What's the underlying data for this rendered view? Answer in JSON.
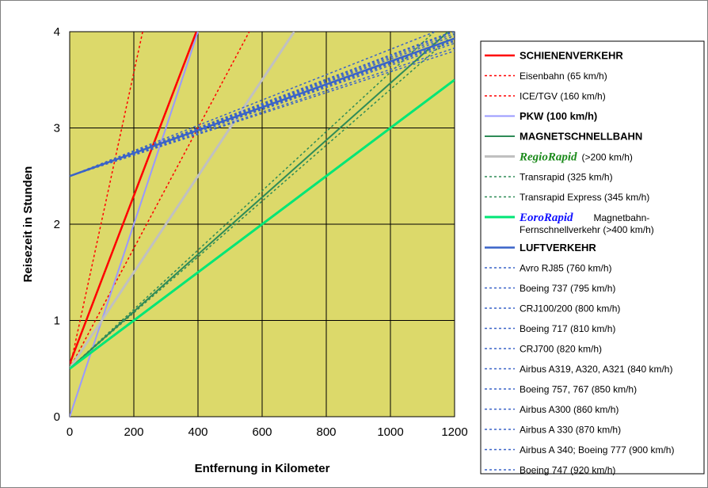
{
  "chart_data": {
    "type": "line",
    "xlabel": "Entfernung in Kilometer",
    "ylabel": "Reisezeit in Stunden",
    "xlim": [
      0,
      1200
    ],
    "ylim": [
      0,
      4
    ],
    "x_ticks": [
      "0",
      "200",
      "400",
      "600",
      "800",
      "1000",
      "1200"
    ],
    "y_ticks": [
      "0",
      "1",
      "2",
      "3",
      "4"
    ],
    "grid": true,
    "legend_position": "right",
    "colors": {
      "plot_background": "#dcd96a",
      "schiene": "#ff0000",
      "pkw": "#9999ff",
      "magnet": "#2e8b57",
      "regio": "#c0c0c0",
      "euro": "#00e676",
      "luft": "#3a63c8"
    },
    "series": [
      {
        "name": "Eisenbahn (65 km/h)",
        "color": "#ff0000",
        "style": "dotted",
        "width": 1.5,
        "points": [
          [
            0,
            0.5
          ],
          [
            260,
            4.5
          ]
        ]
      },
      {
        "name": "ICE/TGV (160 km/h)",
        "color": "#ff0000",
        "style": "dotted",
        "width": 1.5,
        "points": [
          [
            0,
            0.5
          ],
          [
            560,
            4
          ]
        ]
      },
      {
        "name": "SCHIENENVERKEHR",
        "color": "#ff0000",
        "style": "solid",
        "width": 2.5,
        "points": [
          [
            0,
            0.55
          ],
          [
            395,
            4
          ]
        ]
      },
      {
        "name": "PKW (100 km/h)",
        "color": "#9999ff",
        "style": "solid",
        "width": 2,
        "points": [
          [
            0,
            0
          ],
          [
            400,
            4
          ]
        ]
      },
      {
        "name": "RegioRapid",
        "color": "#c0c0c0",
        "style": "solid",
        "width": 3,
        "points": [
          [
            0,
            0.5
          ],
          [
            700,
            4
          ]
        ]
      },
      {
        "name": "Transrapid (325 km/h)",
        "color": "#2e8b57",
        "style": "dotted",
        "width": 1.5,
        "points": [
          [
            0,
            0.5
          ],
          [
            1137,
            4
          ]
        ]
      },
      {
        "name": "Transrapid Express (345 km/h)",
        "color": "#2e8b57",
        "style": "dotted",
        "width": 1.5,
        "points": [
          [
            0,
            0.5
          ],
          [
            1200,
            3.98
          ]
        ]
      },
      {
        "name": "MAGNETSCHNELLBAHN",
        "color": "#2e8b57",
        "style": "solid",
        "width": 2,
        "points": [
          [
            0,
            0.5
          ],
          [
            1180,
            4
          ]
        ]
      },
      {
        "name": "EoroRapid",
        "color": "#00e676",
        "style": "solid",
        "width": 3,
        "points": [
          [
            0,
            0.5
          ],
          [
            1200,
            3.5
          ]
        ]
      },
      {
        "name": "Avro RJ85 (760 km/h)",
        "color": "#3a63c8",
        "style": "dotted",
        "width": 1.5,
        "points": [
          [
            0,
            2.5
          ],
          [
            1200,
            4.08
          ]
        ]
      },
      {
        "name": "Boeing 737 (795 km/h)",
        "color": "#3a63c8",
        "style": "dotted",
        "width": 1.5,
        "points": [
          [
            0,
            2.5
          ],
          [
            1200,
            4.01
          ]
        ]
      },
      {
        "name": "CRJ100/200 (800 km/h)",
        "color": "#3a63c8",
        "style": "dotted",
        "width": 1.5,
        "points": [
          [
            0,
            2.5
          ],
          [
            1200,
            4.0
          ]
        ]
      },
      {
        "name": "Boeing 717 (810 km/h)",
        "color": "#3a63c8",
        "style": "dotted",
        "width": 1.5,
        "points": [
          [
            0,
            2.5
          ],
          [
            1200,
            3.98
          ]
        ]
      },
      {
        "name": "CRJ700 (820 km/h)",
        "color": "#3a63c8",
        "style": "dotted",
        "width": 1.5,
        "points": [
          [
            0,
            2.5
          ],
          [
            1200,
            3.96
          ]
        ]
      },
      {
        "name": "Airbus A319, A320, A321 (840 km/h)",
        "color": "#3a63c8",
        "style": "dotted",
        "width": 1.5,
        "points": [
          [
            0,
            2.5
          ],
          [
            1200,
            3.93
          ]
        ]
      },
      {
        "name": "Boeing 757, 767 (850 km/h)",
        "color": "#3a63c8",
        "style": "dotted",
        "width": 1.5,
        "points": [
          [
            0,
            2.5
          ],
          [
            1200,
            3.91
          ]
        ]
      },
      {
        "name": "Airbus A300 (860 km/h)",
        "color": "#3a63c8",
        "style": "dotted",
        "width": 1.5,
        "points": [
          [
            0,
            2.5
          ],
          [
            1200,
            3.9
          ]
        ]
      },
      {
        "name": "Airbus A 330 (870 km/h)",
        "color": "#3a63c8",
        "style": "dotted",
        "width": 1.5,
        "points": [
          [
            0,
            2.5
          ],
          [
            1200,
            3.88
          ]
        ]
      },
      {
        "name": "Airbus A 340; Boeing 777 (900 km/h)",
        "color": "#3a63c8",
        "style": "dotted",
        "width": 1.5,
        "points": [
          [
            0,
            2.5
          ],
          [
            1200,
            3.83
          ]
        ]
      },
      {
        "name": "Boeing 747 (920 km/h)",
        "color": "#3a63c8",
        "style": "dotted",
        "width": 1.5,
        "points": [
          [
            0,
            2.5
          ],
          [
            1200,
            3.8
          ]
        ]
      },
      {
        "name": "LUFTVERKEHR",
        "color": "#3a63c8",
        "style": "solid",
        "width": 2.5,
        "points": [
          [
            0,
            2.5
          ],
          [
            1200,
            3.93
          ]
        ]
      }
    ],
    "legend": [
      {
        "text": "SCHIENENVERKEHR",
        "color": "#ff0000",
        "style": "solid",
        "width": 2.5,
        "weight": "bold"
      },
      {
        "text": "Eisenbahn (65 km/h)",
        "color": "#ff0000",
        "style": "dotted",
        "width": 1.5,
        "weight": "normal"
      },
      {
        "text": "ICE/TGV (160 km/h)",
        "color": "#ff0000",
        "style": "dotted",
        "width": 1.5,
        "weight": "normal"
      },
      {
        "text": "PKW (100 km/h)",
        "color": "#9999ff",
        "style": "solid",
        "width": 2,
        "weight": "bold"
      },
      {
        "text": "MAGNETSCHNELLBAHN",
        "color": "#2e8b57",
        "style": "solid",
        "width": 2,
        "weight": "bold"
      },
      {
        "text": "RegioRapid",
        "suffix": "(>200 km/h)",
        "color": "#c0c0c0",
        "style": "solid",
        "width": 3,
        "weight": "brand",
        "brand_color": "#1a8a1a"
      },
      {
        "text": "Transrapid (325 km/h)",
        "color": "#2e8b57",
        "style": "dotted",
        "width": 1.5,
        "weight": "normal"
      },
      {
        "text": "Transrapid Express (345 km/h)",
        "color": "#2e8b57",
        "style": "dotted",
        "width": 1.5,
        "weight": "normal"
      },
      {
        "text": "EoroRapid",
        "suffix": "Magnetbahn-",
        "line2": "Fernschnellverkehr (>400 km/h)",
        "color": "#00e676",
        "style": "solid",
        "width": 3,
        "weight": "brand",
        "brand_color": "#1010ff"
      },
      {
        "text": "LUFTVERKEHR",
        "color": "#3a63c8",
        "style": "solid",
        "width": 2.5,
        "weight": "bold"
      },
      {
        "text": "Avro RJ85 (760 km/h)",
        "color": "#3a63c8",
        "style": "dotted",
        "width": 1.5,
        "weight": "normal"
      },
      {
        "text": "Boeing 737 (795 km/h)",
        "color": "#3a63c8",
        "style": "dotted",
        "width": 1.5,
        "weight": "normal"
      },
      {
        "text": "CRJ100/200 (800 km/h)",
        "color": "#3a63c8",
        "style": "dotted",
        "width": 1.5,
        "weight": "normal"
      },
      {
        "text": "Boeing 717 (810 km/h)",
        "color": "#3a63c8",
        "style": "dotted",
        "width": 1.5,
        "weight": "normal"
      },
      {
        "text": "CRJ700 (820 km/h)",
        "color": "#3a63c8",
        "style": "dotted",
        "width": 1.5,
        "weight": "normal"
      },
      {
        "text": "Airbus A319, A320, A321 (840 km/h)",
        "color": "#3a63c8",
        "style": "dotted",
        "width": 1.5,
        "weight": "normal"
      },
      {
        "text": "Boeing 757, 767 (850 km/h)",
        "color": "#3a63c8",
        "style": "dotted",
        "width": 1.5,
        "weight": "normal"
      },
      {
        "text": "Airbus A300 (860 km/h)",
        "color": "#3a63c8",
        "style": "dotted",
        "width": 1.5,
        "weight": "normal"
      },
      {
        "text": "Airbus A 330 (870 km/h)",
        "color": "#3a63c8",
        "style": "dotted",
        "width": 1.5,
        "weight": "normal"
      },
      {
        "text": "Airbus A 340; Boeing 777 (900 km/h)",
        "color": "#3a63c8",
        "style": "dotted",
        "width": 1.5,
        "weight": "normal"
      },
      {
        "text": "Boeing 747 (920 km/h)",
        "color": "#3a63c8",
        "style": "dotted",
        "width": 1.5,
        "weight": "normal"
      }
    ]
  }
}
